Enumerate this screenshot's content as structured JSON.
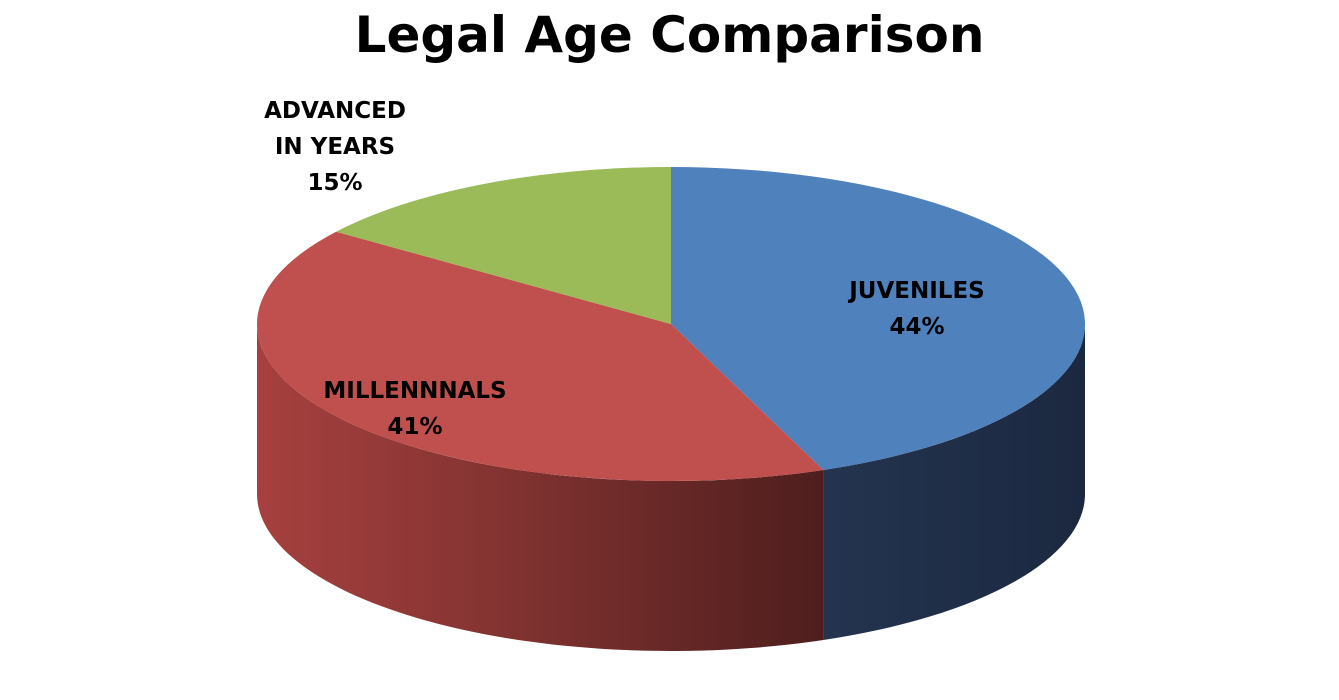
{
  "chart_data": {
    "type": "pie",
    "title": "Legal Age Comparison",
    "style": "3d",
    "slices": [
      {
        "label": "JUVENILES",
        "label_lines": [
          "JUVENILES"
        ],
        "value": 44,
        "value_label": "44%",
        "color": "#4F81BD",
        "side_color": "#22324F"
      },
      {
        "label": "MILLENNNALS",
        "label_lines": [
          "MILLENNNALS"
        ],
        "value": 41,
        "value_label": "41%",
        "color": "#C0504D",
        "side_color": "#8E3A38"
      },
      {
        "label": "ADVANCED IN YEARS",
        "label_lines": [
          "ADVANCED",
          "IN YEARS"
        ],
        "value": 15,
        "value_label": "15%",
        "color": "#9BBB59",
        "side_color": "#6F8A3E"
      }
    ],
    "legend": "none",
    "data_labels": "category-and-percent"
  }
}
